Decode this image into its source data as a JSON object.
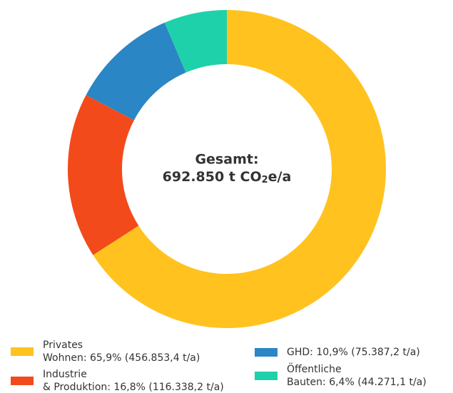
{
  "chart_data": {
    "type": "donut",
    "categories": [
      [
        "Privates",
        "Wohnen: 65,9% (456.853,4 t/a)"
      ],
      [
        "Industrie",
        "& Produktion: 16,8% (116.338,2 t/a)"
      ],
      [
        "GHD: 10,9% (75.387,2 t/a)"
      ],
      [
        "Öffentliche",
        "Bauten: 6,4% (44.271,1 t/a)"
      ]
    ],
    "values": [
      65.9,
      16.8,
      10.9,
      6.4
    ],
    "colors": [
      "#ffc21f",
      "#f24a1a",
      "#2a86c5",
      "#1fd1aa"
    ],
    "center_title": "Gesamt:",
    "center_value": [
      "692.850 t CO",
      "2",
      "e/a"
    ]
  }
}
